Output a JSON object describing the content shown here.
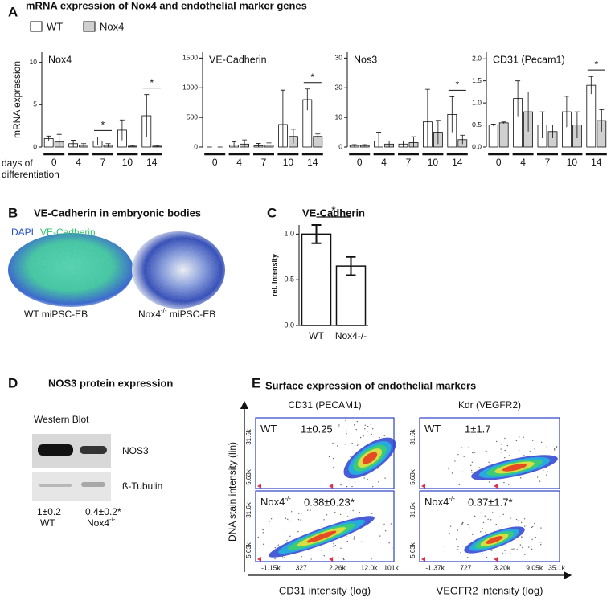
{
  "panel_a": {
    "letter": "A",
    "title": "mRNA expression of Nox4 and endothelial marker genes",
    "y_label": "mRNA expression",
    "x_label": "days of differentiation"
  },
  "chart_data": [
    {
      "type": "bar",
      "title": "Nox4",
      "categories": [
        "0",
        "4",
        "7",
        "10",
        "14"
      ],
      "series": [
        {
          "name": "WT",
          "color": "#ffffff",
          "values": [
            1.0,
            0.4,
            0.7,
            2.0,
            3.7
          ],
          "errors": [
            0.3,
            0.4,
            0.5,
            1.2,
            2.5
          ]
        },
        {
          "name": "Nox4",
          "color": "#d0d0d0",
          "values": [
            0.6,
            0.2,
            0.2,
            0.1,
            0.1
          ],
          "errors": [
            0.9,
            0.2,
            0.2,
            0.1,
            0.1
          ]
        }
      ],
      "ylim": [
        0,
        11.2
      ],
      "yticks": [
        0,
        5,
        10
      ],
      "significance": [
        null,
        null,
        "*",
        null,
        "*"
      ]
    },
    {
      "type": "bar",
      "title": "VE-Cadherin",
      "categories": [
        "0",
        "4",
        "7",
        "10",
        "14"
      ],
      "series": [
        {
          "color": "#ffffff",
          "values": [
            0,
            30,
            20,
            380,
            800
          ],
          "errors": [
            0,
            60,
            40,
            580,
            180
          ]
        },
        {
          "color": "#d0d0d0",
          "values": [
            0,
            50,
            30,
            180,
            180
          ],
          "errors": [
            0,
            70,
            40,
            120,
            40
          ]
        }
      ],
      "ylim": [
        0,
        1600
      ],
      "yticks": [
        0,
        500,
        1000,
        1500
      ],
      "significance": [
        null,
        null,
        null,
        null,
        "*"
      ]
    },
    {
      "type": "bar",
      "title": "Nos3",
      "categories": [
        "0",
        "4",
        "7",
        "10",
        "14"
      ],
      "series": [
        {
          "color": "#ffffff",
          "values": [
            0.5,
            2,
            1,
            8.5,
            11
          ],
          "errors": [
            0.3,
            3,
            1,
            11,
            6
          ]
        },
        {
          "color": "#d0d0d0",
          "values": [
            0.5,
            1,
            1.5,
            5,
            2.5
          ],
          "errors": [
            0.3,
            1,
            2,
            4,
            1.5
          ]
        }
      ],
      "ylim": [
        0,
        32
      ],
      "yticks": [
        0,
        10,
        20,
        30
      ],
      "significance": [
        null,
        null,
        null,
        null,
        "*"
      ]
    },
    {
      "type": "bar",
      "title": "CD31 (Pecam1)",
      "categories": [
        "0",
        "4",
        "7",
        "10",
        "14"
      ],
      "series": [
        {
          "color": "#ffffff",
          "values": [
            0.5,
            1.1,
            0.5,
            0.8,
            1.4
          ],
          "errors": [
            0.02,
            0.4,
            0.3,
            0.35,
            0.2
          ]
        },
        {
          "color": "#d0d0d0",
          "values": [
            0.55,
            0.8,
            0.35,
            0.5,
            0.6
          ],
          "errors": [
            0.02,
            0.45,
            0.15,
            0.3,
            0.25
          ]
        }
      ],
      "ylim": [
        0,
        2.15
      ],
      "yticks": [
        {
          "value": 0,
          "label": "0.0"
        },
        {
          "value": 0.5,
          "label": "0.5"
        },
        {
          "value": 1,
          "label": "1.0"
        },
        {
          "value": 1.5,
          "label": "1.5"
        },
        {
          "value": 2,
          "label": "2.0"
        }
      ],
      "significance": [
        null,
        null,
        null,
        null,
        "*"
      ]
    },
    {
      "type": "bar",
      "title": "VE-Cadherin",
      "y_label": "rel. intensity",
      "categories": [
        "WT",
        "Nox4-/-"
      ],
      "values": [
        1.0,
        0.65
      ],
      "errors": [
        0.1,
        0.1
      ],
      "colors": [
        "#ffffff",
        "#ffffff"
      ],
      "ylim": [
        0,
        1.1
      ],
      "yticks": [
        {
          "value": 0,
          "label": "0.0"
        },
        {
          "value": 0.5,
          "label": "0.5"
        },
        {
          "value": 1,
          "label": "1.0"
        }
      ],
      "significance": "*"
    }
  ],
  "panel_b": {
    "letter": "B",
    "title": "VE-Cadherin in embryonic bodies",
    "stains": [
      {
        "name": "DAPI",
        "color": "#2350c8"
      },
      {
        "name": "VE-Cadherin",
        "color": "#33c26e"
      }
    ],
    "images": [
      {
        "label": "WT miPSC-EB"
      },
      {
        "label": "Nox4",
        "label_sup": "-/-",
        "label_suffix": " miPSC-EB"
      }
    ]
  },
  "panel_c": {
    "letter": "C"
  },
  "panel_d": {
    "letter": "D",
    "title": "NOS3 protein expression",
    "subtitle": "Western Blot",
    "bands": [
      "NOS3",
      "ß-Tubulin"
    ],
    "lanes": [
      {
        "value": "1±0.2",
        "label": "WT"
      },
      {
        "value": "0.4±0.2*",
        "label": "Nox4",
        "label_sup": "-/-"
      }
    ]
  },
  "panel_e": {
    "letter": "E",
    "title": "Surface expression of endothelial markers",
    "y_label": "DNA stain intensity (lin)",
    "columns": [
      {
        "title": "CD31 (PECAM1)",
        "x_label": "CD31 intensity (log)",
        "x_tick_labels": [
          "-1.15k",
          "327",
          "2.26k",
          "12.0k",
          "101k"
        ],
        "y_tick_labels": [
          "31.6k",
          "5.63k"
        ],
        "rows": [
          {
            "group": "WT",
            "value": "1±0.25"
          },
          {
            "group": "Nox4",
            "group_sup": "-/-",
            "value": "0.38±0.23*"
          }
        ]
      },
      {
        "title": "Kdr (VEGFR2)",
        "x_label": "VEGFR2 intensity (log)",
        "x_tick_labels": [
          "-1.37k",
          "727",
          "3.20k",
          "9.05k",
          "35.1k"
        ],
        "y_tick_labels": [
          "31.6k",
          "5.63k"
        ],
        "rows": [
          {
            "group": "WT",
            "value": "1±1.7"
          },
          {
            "group": "Nox4",
            "group_sup": "-/-",
            "value": "0.37±1.7*"
          }
        ]
      }
    ]
  }
}
